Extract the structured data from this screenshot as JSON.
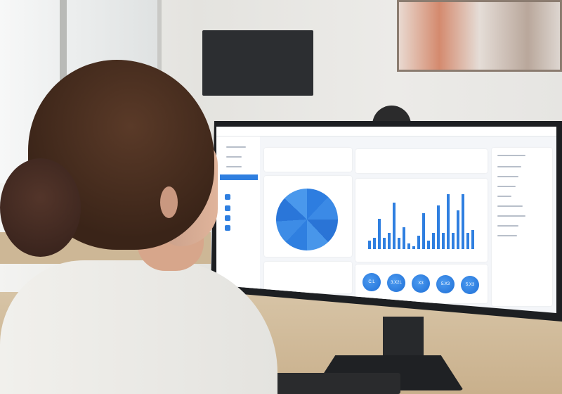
{
  "scene": {
    "description_colors": {
      "accent": "#2f7fe0",
      "bezel": "#1d1f22",
      "hair": "#3a2418"
    }
  },
  "screen": {
    "nav_active_color": "#2f7fe0",
    "bar_chart": {
      "type": "bar",
      "values": [
        3,
        4,
        11,
        4,
        6,
        17,
        4,
        8,
        2,
        1,
        5,
        13,
        3,
        6,
        16,
        6,
        20,
        6,
        14,
        20,
        6,
        7
      ]
    },
    "pie_chart": {
      "type": "pie",
      "slices": 10
    },
    "kpi_circles": [
      "C.L",
      "3.X2L",
      "X3",
      "5.X3",
      "5.X3"
    ]
  }
}
